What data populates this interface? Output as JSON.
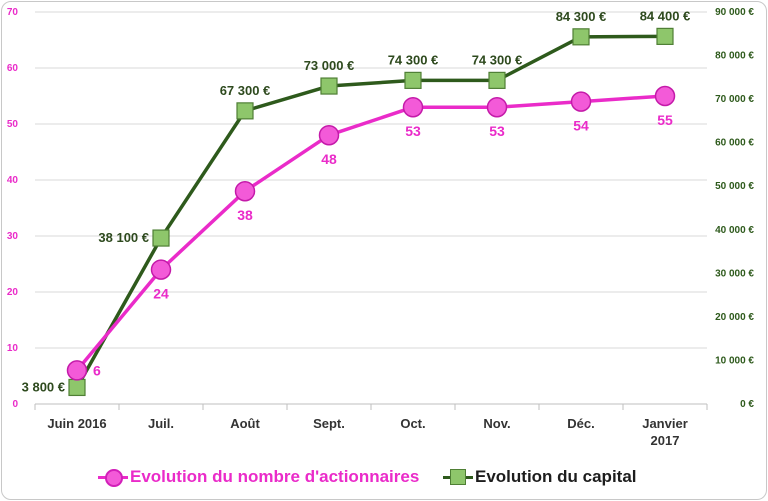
{
  "chart_data": {
    "type": "line",
    "categories": [
      "Juin 2016",
      "Juil.",
      "Août",
      "Sept.",
      "Oct.",
      "Nov.",
      "Déc.",
      "Janvier 2017"
    ],
    "y_left": {
      "ticks": [
        "0",
        "10",
        "20",
        "30",
        "40",
        "50",
        "60",
        "70"
      ],
      "ylim": [
        0,
        70
      ]
    },
    "y_right": {
      "ticks": [
        "0 €",
        "10 000 €",
        "20 000 €",
        "30 000 €",
        "40 000 €",
        "50 000 €",
        "60 000 €",
        "70 000 €",
        "80 000 €",
        "90 000 €"
      ],
      "ylim": [
        0,
        90000
      ]
    },
    "series": [
      {
        "name": "Evolution du nombre d'actionnaires",
        "axis": "left",
        "values": [
          6,
          24,
          38,
          48,
          53,
          53,
          54,
          55
        ],
        "labels": [
          "6",
          "24",
          "38",
          "48",
          "53",
          "53",
          "54",
          "55"
        ],
        "color": "#ea2bc9",
        "marker": "circle"
      },
      {
        "name": "Evolution du capital",
        "axis": "right",
        "values": [
          3800,
          38100,
          67300,
          73000,
          74300,
          74300,
          84300,
          84400
        ],
        "labels": [
          "3 800 €",
          "38 100 €",
          "67 300 €",
          "73 000 €",
          "74 300 €",
          "74 300 €",
          "84 300 €",
          "84 400 €"
        ],
        "color": "#2e5a1c",
        "marker": "square"
      }
    ],
    "grid": true,
    "legend": "bottom"
  }
}
